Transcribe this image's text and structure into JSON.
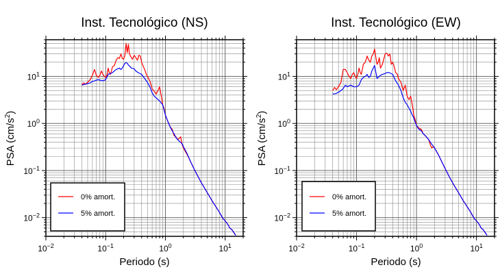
{
  "chart_data": [
    {
      "type": "line",
      "title": "Inst. Tecnológico (NS)",
      "xlabel": "Periodo (s)",
      "ylabel_main": "PSA (cm/s",
      "ylabel_sup": "2",
      "ylabel_close": ")",
      "x_scale": "log",
      "y_scale": "log",
      "xlim": [
        0.01,
        20
      ],
      "ylim": [
        0.004,
        60
      ],
      "grid": true,
      "legend_position": "bottom-left",
      "x_ticks": [
        {
          "value": 0.01,
          "base": "10",
          "exp": "−2"
        },
        {
          "value": 0.1,
          "base": "10",
          "exp": "−1"
        },
        {
          "value": 1,
          "base": "10",
          "exp": "0"
        },
        {
          "value": 10,
          "base": "10",
          "exp": "1"
        }
      ],
      "y_ticks": [
        {
          "value": 0.01,
          "base": "10",
          "exp": "−2"
        },
        {
          "value": 0.1,
          "base": "10",
          "exp": "−1"
        },
        {
          "value": 1,
          "base": "10",
          "exp": "0"
        },
        {
          "value": 10,
          "base": "10",
          "exp": "1"
        }
      ],
      "series": [
        {
          "name": "0% amort.",
          "color": "#ff0000",
          "x": [
            0.04,
            0.043,
            0.046,
            0.05,
            0.055,
            0.06,
            0.065,
            0.07,
            0.075,
            0.08,
            0.085,
            0.09,
            0.095,
            0.1,
            0.105,
            0.11,
            0.115,
            0.12,
            0.125,
            0.13,
            0.14,
            0.15,
            0.16,
            0.17,
            0.18,
            0.19,
            0.2,
            0.21,
            0.22,
            0.23,
            0.24,
            0.25,
            0.26,
            0.27,
            0.28,
            0.3,
            0.32,
            0.34,
            0.36,
            0.38,
            0.4,
            0.42,
            0.45,
            0.48,
            0.5,
            0.55,
            0.6,
            0.65,
            0.7,
            0.75,
            0.8,
            0.85,
            0.9,
            0.95,
            1.0,
            1.1,
            1.2,
            1.3,
            1.4,
            1.5,
            1.6,
            1.7,
            1.8,
            1.9,
            2.0,
            2.3,
            2.6,
            3.0,
            3.5,
            4.0,
            5.0,
            6.0,
            7.0,
            8.0,
            9.0,
            10.0,
            11.0,
            12.0,
            13.0,
            14.0,
            15.0
          ],
          "y": [
            6.5,
            7.3,
            6.8,
            7.5,
            8.5,
            10.5,
            14,
            10.5,
            9.5,
            10.5,
            13,
            11,
            10,
            9.5,
            10.5,
            15,
            12,
            11,
            13,
            16,
            17,
            22,
            25,
            24,
            30,
            24,
            23,
            28,
            50,
            32,
            48,
            30,
            27,
            25,
            23,
            28,
            25,
            22,
            28,
            27,
            20,
            17,
            14,
            11,
            10,
            8.0,
            5.5,
            4.8,
            4.2,
            5.0,
            6.0,
            4.0,
            2.5,
            2.1,
            1.5,
            1.1,
            0.85,
            0.75,
            0.55,
            0.52,
            0.45,
            0.48,
            0.52,
            0.36,
            0.3,
            0.22,
            0.16,
            0.11,
            0.075,
            0.055,
            0.034,
            0.023,
            0.017,
            0.013,
            0.01,
            0.0085,
            0.0073,
            0.006,
            0.0055,
            0.0048,
            0.0042
          ]
        },
        {
          "name": "5% amort.",
          "color": "#0000ff",
          "x": [
            0.04,
            0.045,
            0.05,
            0.055,
            0.06,
            0.065,
            0.07,
            0.075,
            0.08,
            0.09,
            0.1,
            0.11,
            0.12,
            0.13,
            0.14,
            0.15,
            0.16,
            0.17,
            0.18,
            0.19,
            0.2,
            0.21,
            0.22,
            0.23,
            0.24,
            0.25,
            0.27,
            0.3,
            0.32,
            0.35,
            0.4,
            0.45,
            0.5,
            0.55,
            0.6,
            0.65,
            0.7,
            0.8,
            0.9,
            1.0,
            1.1,
            1.2,
            1.3,
            1.4,
            1.5,
            1.6,
            1.7,
            1.8,
            1.9,
            2.0,
            2.3,
            2.6,
            3.0,
            3.5,
            4.0,
            5.0,
            6.0,
            7.0,
            8.0,
            9.0,
            10.0,
            11.0,
            12.0,
            13.0,
            14.0,
            15.0
          ],
          "y": [
            6.5,
            6.8,
            7.0,
            7.3,
            7.8,
            8.0,
            8.3,
            8.5,
            8.3,
            8.0,
            8.5,
            11,
            11.5,
            12,
            13,
            14,
            14.5,
            15,
            14,
            15,
            17,
            19,
            19.5,
            19,
            17.5,
            16.5,
            15,
            14.5,
            13,
            12,
            11,
            9,
            7.5,
            6.0,
            4.5,
            3.8,
            3.5,
            3.0,
            2.5,
            1.5,
            1.1,
            0.85,
            0.7,
            0.6,
            0.5,
            0.46,
            0.42,
            0.4,
            0.37,
            0.32,
            0.23,
            0.16,
            0.11,
            0.075,
            0.055,
            0.034,
            0.023,
            0.017,
            0.013,
            0.01,
            0.0085,
            0.0073,
            0.006,
            0.0055,
            0.0048,
            0.0042
          ]
        }
      ]
    },
    {
      "type": "line",
      "title": "Inst. Tecnológico (EW)",
      "xlabel": "Periodo (s)",
      "ylabel_main": "PSA (cm/s",
      "ylabel_sup": "2",
      "ylabel_close": ")",
      "x_scale": "log",
      "y_scale": "log",
      "xlim": [
        0.01,
        20
      ],
      "ylim": [
        0.004,
        60
      ],
      "grid": true,
      "legend_position": "bottom-left",
      "x_ticks": [
        {
          "value": 0.01,
          "base": "10",
          "exp": "−2"
        },
        {
          "value": 0.1,
          "base": "10",
          "exp": "−1"
        },
        {
          "value": 1,
          "base": "10",
          "exp": "0"
        },
        {
          "value": 10,
          "base": "10",
          "exp": "1"
        }
      ],
      "y_ticks": [
        {
          "value": 0.01,
          "base": "10",
          "exp": "−2"
        },
        {
          "value": 0.1,
          "base": "10",
          "exp": "−1"
        },
        {
          "value": 1,
          "base": "10",
          "exp": "0"
        },
        {
          "value": 10,
          "base": "10",
          "exp": "1"
        }
      ],
      "series": [
        {
          "name": "0% amort.",
          "color": "#ff0000",
          "x": [
            0.04,
            0.043,
            0.046,
            0.05,
            0.055,
            0.06,
            0.065,
            0.07,
            0.075,
            0.08,
            0.085,
            0.09,
            0.095,
            0.1,
            0.105,
            0.11,
            0.115,
            0.12,
            0.13,
            0.14,
            0.15,
            0.16,
            0.17,
            0.18,
            0.19,
            0.2,
            0.21,
            0.22,
            0.23,
            0.24,
            0.25,
            0.27,
            0.3,
            0.32,
            0.34,
            0.36,
            0.38,
            0.4,
            0.42,
            0.45,
            0.48,
            0.5,
            0.55,
            0.6,
            0.65,
            0.7,
            0.75,
            0.8,
            0.85,
            0.9,
            0.95,
            1.0,
            1.1,
            1.2,
            1.3,
            1.4,
            1.5,
            1.6,
            1.7,
            1.8,
            1.9,
            2.0,
            2.3,
            2.6,
            3.0,
            3.5,
            4.0,
            5.0,
            6.0,
            7.0,
            8.0,
            9.0,
            10.0,
            11.0,
            12.0,
            13.0,
            14.0,
            15.0
          ],
          "y": [
            5.0,
            5.8,
            5.2,
            6.0,
            7.5,
            14,
            14,
            12,
            10,
            9,
            11,
            12,
            10,
            9,
            11,
            15,
            12,
            11,
            18,
            20,
            27,
            22,
            20,
            27,
            30,
            38,
            25,
            18,
            20,
            25,
            15,
            18,
            30,
            31,
            27,
            30,
            18,
            20,
            17,
            12,
            11,
            9,
            7.5,
            5,
            6.5,
            3.8,
            3.2,
            3.8,
            2.5,
            1.5,
            1.2,
            0.9,
            0.8,
            0.75,
            0.6,
            0.55,
            0.5,
            0.45,
            0.35,
            0.3,
            0.32,
            0.3,
            0.22,
            0.16,
            0.11,
            0.075,
            0.055,
            0.034,
            0.023,
            0.017,
            0.013,
            0.01,
            0.0085,
            0.0073,
            0.006,
            0.0055,
            0.0048,
            0.0042
          ]
        },
        {
          "name": "5% amort.",
          "color": "#0000ff",
          "x": [
            0.04,
            0.045,
            0.05,
            0.055,
            0.06,
            0.065,
            0.07,
            0.075,
            0.08,
            0.09,
            0.1,
            0.11,
            0.12,
            0.13,
            0.14,
            0.15,
            0.16,
            0.17,
            0.18,
            0.19,
            0.2,
            0.21,
            0.22,
            0.23,
            0.24,
            0.25,
            0.27,
            0.3,
            0.32,
            0.35,
            0.4,
            0.45,
            0.5,
            0.55,
            0.6,
            0.65,
            0.7,
            0.8,
            0.9,
            1.0,
            1.1,
            1.2,
            1.3,
            1.4,
            1.5,
            1.6,
            1.7,
            1.8,
            1.9,
            2.0,
            2.3,
            2.6,
            3.0,
            3.5,
            4.0,
            5.0,
            6.0,
            7.0,
            8.0,
            9.0,
            10.0,
            11.0,
            12.0,
            13.0,
            14.0,
            15.0
          ],
          "y": [
            4.2,
            4.3,
            4.6,
            5.0,
            5.5,
            6.5,
            6.0,
            6.3,
            6.5,
            6.0,
            6.0,
            6.5,
            8.5,
            9.5,
            10,
            11,
            9.5,
            10,
            13,
            15,
            17,
            12,
            9,
            9.5,
            10,
            10.5,
            11,
            11.5,
            12,
            12,
            11,
            8,
            6.5,
            5.0,
            3.5,
            2.8,
            2.5,
            1.8,
            1.3,
            0.9,
            0.75,
            0.7,
            0.6,
            0.55,
            0.5,
            0.45,
            0.4,
            0.36,
            0.33,
            0.3,
            0.22,
            0.16,
            0.11,
            0.075,
            0.055,
            0.034,
            0.023,
            0.017,
            0.013,
            0.01,
            0.0085,
            0.0073,
            0.006,
            0.0055,
            0.0048,
            0.0042
          ]
        }
      ]
    }
  ]
}
